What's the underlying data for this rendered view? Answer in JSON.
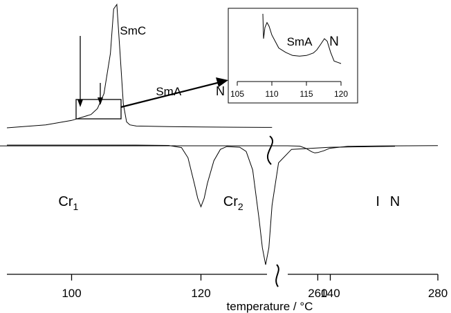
{
  "chart_data": [
    {
      "type": "line",
      "title": "",
      "xlabel": "temperature / °C",
      "ylabel": "",
      "axis_break": [
        155,
        255
      ],
      "xlim_left": [
        90,
        158
      ],
      "xlim_right": [
        255,
        280
      ],
      "x_ticks": [
        100,
        120,
        140,
        260,
        280
      ],
      "grid": false,
      "series": [
        {
          "x": [
            90,
            96,
            100,
            103,
            104,
            105,
            106,
            106.5,
            107,
            107.5,
            108,
            108.5,
            109,
            110,
            115,
            120,
            125,
            131
          ],
          "y": [
            0,
            0.2,
            0.5,
            0.9,
            1.3,
            2.3,
            5.0,
            8.0,
            8.3,
            5.0,
            1.6,
            0.4,
            0.2,
            0.12,
            0.08,
            0.06,
            0.04,
            0.03
          ]
        },
        {
          "x": [
            90,
            100,
            110,
            115,
            117,
            118,
            119,
            119.5,
            120,
            120.5,
            121,
            122,
            123,
            124,
            126,
            127,
            128,
            129,
            129.5,
            130,
            130.5,
            131,
            132,
            134,
            140,
            150,
            157,
            255,
            257,
            258,
            259,
            259.5,
            260,
            261,
            262,
            265,
            270,
            280
          ],
          "y": [
            0,
            0,
            0,
            -0.05,
            -0.35,
            -1.8,
            -5.5,
            -7.5,
            -8.7,
            -7.5,
            -5.4,
            -2.2,
            -0.6,
            -0.2,
            -0.3,
            -0.9,
            -3.5,
            -10.5,
            -14.5,
            -16.9,
            -14.5,
            -8.5,
            -2.5,
            -0.6,
            -0.3,
            -0.18,
            -0.12,
            -0.1,
            -0.15,
            -0.45,
            -0.95,
            -1.1,
            -1.05,
            -0.8,
            -0.45,
            -0.18,
            -0.12,
            -0.08
          ]
        }
      ],
      "annotations": [
        {
          "text": "SmC",
          "x": 109.5
        },
        {
          "text": "SmA",
          "x": 115
        },
        {
          "text": "N",
          "x": 123
        },
        {
          "text": "Cr",
          "sub": "1",
          "x": 99.5
        },
        {
          "text": "Cr",
          "sub": "2",
          "x": 125
        },
        {
          "text": "N",
          "x": 150
        },
        {
          "text": "I",
          "x": 270
        }
      ]
    },
    {
      "type": "line",
      "inset": true,
      "xlim": [
        105,
        120
      ],
      "x_ticks": [
        105,
        110,
        115,
        120
      ],
      "series": [
        {
          "x": [
            108.7,
            108.8,
            109,
            109.3,
            109.6,
            110,
            111,
            112,
            113,
            114,
            115,
            116,
            116.5,
            117,
            117.3,
            117.6,
            118,
            118.5,
            119,
            119.5,
            120
          ],
          "y": [
            1.0,
            0.6,
            0.78,
            0.86,
            0.8,
            0.66,
            0.45,
            0.38,
            0.33,
            0.32,
            0.33,
            0.37,
            0.42,
            0.5,
            0.55,
            0.6,
            0.56,
            0.38,
            0.24,
            0.22,
            0.2
          ]
        }
      ],
      "annotations": [
        {
          "text": "SmA",
          "x": 114
        },
        {
          "text": "N",
          "x": 119
        }
      ]
    }
  ]
}
